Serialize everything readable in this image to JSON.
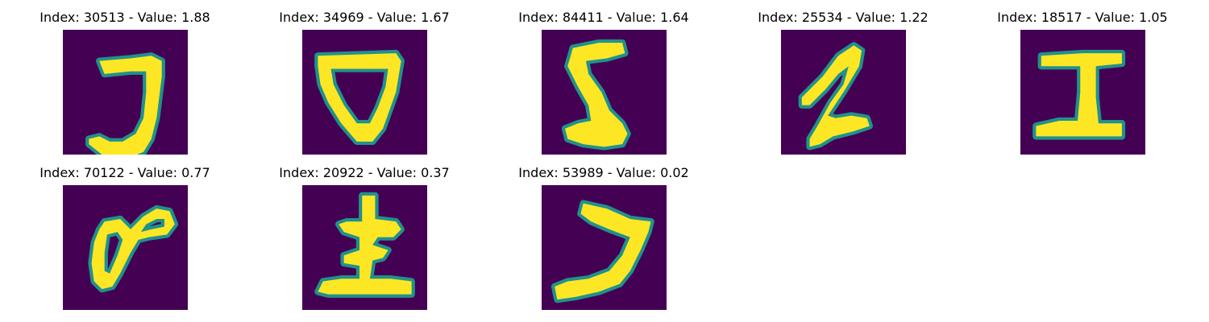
{
  "colors": {
    "background": "#440154",
    "stroke_mid": "#21918c",
    "stroke_high": "#fde725"
  },
  "panels": [
    {
      "title": "Index: 30513 - Value: 1.88",
      "paths": [
        "M 7 6 L 13 5.5 L 17 5 L 19 6 L 19 9 L 18.5 13 L 18 17 L 17 21 L 15.5 23.5 L 13 24.5 L 10 24.5 L 7.5 24 L 5 22 L 5 21 L 7 20.5 L 9 21.5 L 11.5 21.5 L 14 20 L 15.5 17 L 16 12 L 16 8 L 13 8 L 8 8.5 Z"
      ]
    },
    {
      "title": "Index: 34969 - Value: 1.67",
      "paths": [
        "M 3 5 L 18 4.5 L 19 6 L 18 12 L 15.5 19 L 13.5 21.5 L 10.5 21.5 L 7.5 18 L 5 14 L 3.5 10.5 L 3 7 Z M 5.5 7.5 L 6 10.5 L 8 14.5 L 10.5 18 L 13 18 L 14.5 15 L 16 11 L 16.5 7.5 Z"
      ]
    },
    {
      "title": "Index: 84411 - Value: 1.64",
      "paths": [
        "M 6 3.5 L 11 2.5 L 15.5 2.5 L 16 4.5 L 12.5 5.5 L 8.5 6 L 9 8.5 L 11.5 12 L 13 15.5 L 15.5 18 L 16.5 20 L 15.5 22 L 12 22.5 L 8 22 L 5 21 L 4.5 19 L 7 18 L 9.5 17.5 L 9 14.5 L 7 11 L 5 7 Z"
      ]
    },
    {
      "title": "Index: 25534 - Value: 1.22",
      "paths": [
        "M 4 13 L 8 9 L 11 5 L 14 3 L 15.5 4 L 15 7 L 12 12 L 9 16.5 L 10.5 17 L 13.5 16.5 L 16.5 17 L 17 18.5 L 14 19.5 L 10 20.5 L 7.5 22 L 5.5 22.5 L 5.5 21 L 7 18.5 L 9.5 14 L 12 10.5 L 13 7 L 11 8.5 L 8.5 11.5 L 5.5 14.5 L 4 14.5 Z"
      ]
    },
    {
      "title": "Index: 18517 - Value: 1.05",
      "paths": [
        "M 4 5 L 12 4.5 L 19.5 4.5 L 19.5 6.5 L 14.5 7 L 14.5 13 L 15 18 L 19.5 18 L 19.5 20.5 L 12 20.5 L 3 20.5 L 3 18.5 L 7.5 17.5 L 11 17.5 L 11.5 12 L 11.5 7 L 6.5 7 L 4 7 Z"
      ]
    },
    {
      "title": "Index: 70122 - Value: 0.77",
      "paths": [
        "M 8 7 L 11 6.5 L 13 8.5 L 15.5 6 L 18 4.5 L 20.5 5 L 21.5 7.5 L 20 9.5 L 16.5 10 L 14.5 10.5 L 13 13 L 11 17 L 9.5 19.5 L 7.5 20 L 6 18.5 L 5.5 15 L 6 11 L 7 8.5 Z M 8.5 9.5 L 8 13 L 8 16.5 L 9 17 L 10.5 13.5 L 11.5 10.5 L 10.5 9 Z M 16 7.5 L 15 9 L 17 8.5 L 19.5 8 L 19.5 6.5 L 18 6.5 Z"
      ]
    },
    {
      "title": "Index: 20922 - Value: 0.37",
      "paths": [
        "M 11.5 2 L 14 2 L 14 6.5 L 18 7 L 19 8.5 L 17.5 10 L 14.5 10 L 13.5 11.5 L 16.5 12.5 L 15.5 14 L 13.5 14.5 L 13 18 L 17 18 L 21 18.5 L 21 21 L 15 21 L 5 21 L 3 20.5 L 4 18.5 L 7.5 18 L 11 18 L 11 15.5 L 8 15 L 8 13.5 L 11 12.5 L 11 10 L 8 9 L 7 7.5 L 8.5 7 L 11.5 7 Z"
      ]
    },
    {
      "title": "Index: 53989 - Value: 0.02",
      "paths": [
        "M 8 3.5 L 12.5 4.5 L 17 6.5 L 21 7 L 20.5 9 L 19 12.5 L 17 16.5 L 15 19 L 11 20.5 L 6.5 21.5 L 3 22 L 2.5 19.5 L 5 18.5 L 9 18 L 13 16.5 L 15.5 13.5 L 17 10 L 13 8.5 L 9.5 7 L 7.5 5.5 Z"
      ]
    }
  ]
}
